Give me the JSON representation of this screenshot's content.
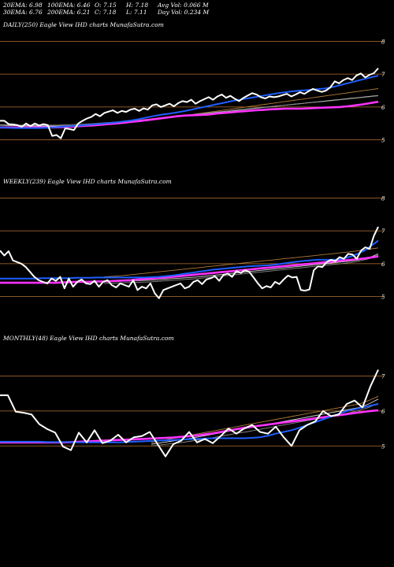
{
  "header": {
    "ema20": "20EMA: 6.98",
    "ema100": "100EMA: 6.46",
    "open": "O: 7.15",
    "high": "H: 7.18",
    "avg_vol": "Avg Vol: 0.066  M",
    "ema30": "30EMA: 6.76",
    "ema200": "200EMA: 6.21",
    "close": "C: 7.18",
    "low": "L: 7.11",
    "day_vol": "Day Vol: 0.234  M"
  },
  "colors": {
    "price": "#ffffff",
    "ema_fast": "#1f5fff",
    "ema_slow": "#ff33ff",
    "ma": "#b07a38",
    "grid": "#b87333"
  },
  "chart_data": [
    {
      "type": "line",
      "title": "DAILY(250) Eagle  View  IHD charts MunafaSutra.com",
      "ylim": [
        4.8,
        8.2
      ],
      "y_ticks": [
        5,
        6,
        7,
        8
      ],
      "series": [
        {
          "role": "price",
          "values": [
            5.58,
            5.58,
            5.48,
            5.47,
            5.45,
            5.4,
            5.5,
            5.42,
            5.5,
            5.44,
            5.48,
            5.45,
            5.12,
            5.15,
            5.05,
            5.35,
            5.33,
            5.3,
            5.5,
            5.58,
            5.65,
            5.7,
            5.79,
            5.72,
            5.82,
            5.86,
            5.9,
            5.82,
            5.88,
            5.85,
            5.92,
            5.95,
            5.88,
            5.96,
            5.92,
            6.05,
            6.08,
            6.0,
            6.05,
            6.1,
            6.02,
            6.12,
            6.18,
            6.15,
            6.22,
            6.1,
            6.18,
            6.24,
            6.3,
            6.22,
            6.32,
            6.38,
            6.28,
            6.34,
            6.25,
            6.18,
            6.28,
            6.35,
            6.42,
            6.38,
            6.3,
            6.26,
            6.32,
            6.3,
            6.32,
            6.36,
            6.4,
            6.32,
            6.38,
            6.45,
            6.4,
            6.48,
            6.55,
            6.5,
            6.46,
            6.5,
            6.6,
            6.78,
            6.72,
            6.82,
            6.88,
            6.82,
            6.96,
            7.02,
            6.9,
            6.98,
            7.03,
            7.18
          ]
        },
        {
          "role": "ema_fast",
          "values": [
            5.38,
            5.37,
            5.36,
            5.36,
            5.36,
            5.36,
            5.37,
            5.38,
            5.4,
            5.42,
            5.43,
            5.45,
            5.47,
            5.49,
            5.51,
            5.53,
            5.56,
            5.59,
            5.63,
            5.68,
            5.73,
            5.77,
            5.8,
            5.84,
            5.88,
            5.93,
            5.98,
            6.03,
            6.08,
            6.13,
            6.18,
            6.22,
            6.26,
            6.3,
            6.34,
            6.38,
            6.42,
            6.45,
            6.48,
            6.5,
            6.52,
            6.54,
            6.56,
            6.6,
            6.66,
            6.72,
            6.78,
            6.84,
            6.9,
            6.95
          ]
        },
        {
          "role": "ema_slow",
          "values": [
            5.38,
            5.38,
            5.38,
            5.38,
            5.38,
            5.38,
            5.38,
            5.38,
            5.39,
            5.4,
            5.41,
            5.43,
            5.44,
            5.46,
            5.48,
            5.5,
            5.52,
            5.55,
            5.57,
            5.6,
            5.63,
            5.66,
            5.69,
            5.72,
            5.74,
            5.75,
            5.76,
            5.77,
            5.8,
            5.82,
            5.84,
            5.86,
            5.88,
            5.9,
            5.91,
            5.93,
            5.94,
            5.95,
            5.95,
            5.95,
            5.96,
            5.97,
            5.98,
            5.99,
            6.0,
            6.02,
            6.05,
            6.08,
            6.12,
            6.16
          ]
        },
        {
          "role": "ma",
          "values": [
            5.45,
            5.44,
            5.43,
            5.42,
            5.41,
            5.4,
            5.4,
            5.41,
            5.42,
            5.44,
            5.46,
            5.48,
            5.5,
            5.53,
            5.56,
            5.59,
            5.62,
            5.65,
            5.68,
            5.72,
            5.76,
            5.8,
            5.84,
            5.88,
            5.92,
            5.96,
            6.0,
            6.04,
            6.08,
            6.12,
            6.16,
            6.2,
            6.24,
            6.28,
            6.32,
            6.36,
            6.4,
            6.44,
            6.48,
            6.52,
            6.56
          ]
        },
        {
          "role": "ma",
          "values": [
            5.45,
            5.44,
            5.43,
            5.43,
            5.42,
            5.42,
            5.42,
            5.43,
            5.44,
            5.45,
            5.47,
            5.49,
            5.51,
            5.54,
            5.57,
            5.6,
            5.63,
            5.66,
            5.69,
            5.72,
            5.75,
            5.78,
            5.81,
            5.84,
            5.87,
            5.9,
            5.93,
            5.96,
            5.99,
            6.02,
            6.05,
            6.08,
            6.11,
            6.14,
            6.17,
            6.2,
            6.23,
            6.26,
            6.29,
            6.32,
            6.35
          ]
        },
        {
          "role": "ma",
          "values": [
            5.46,
            5.46,
            5.45,
            5.45,
            5.45,
            5.45,
            5.45,
            5.46,
            5.47,
            5.48,
            5.5,
            5.52,
            5.54,
            5.56,
            5.58,
            5.61,
            5.64,
            5.67,
            5.7,
            5.73,
            5.76,
            5.79,
            5.82,
            5.85,
            5.88,
            5.91,
            5.94,
            5.97,
            6.0,
            6.02,
            6.05,
            6.08,
            6.11,
            6.14,
            6.16,
            6.19,
            6.22,
            6.25,
            6.28,
            6.31,
            6.34
          ]
        }
      ]
    },
    {
      "type": "line",
      "title": "WEEKLY(239) Eagle  View  IHD charts MunafaSutra.com",
      "ylim": [
        4.8,
        8.2
      ],
      "y_ticks": [
        5,
        6,
        7,
        8
      ],
      "series": [
        {
          "role": "price",
          "values": [
            6.4,
            6.25,
            6.38,
            6.1,
            6.05,
            6.0,
            5.9,
            5.75,
            5.6,
            5.5,
            5.45,
            5.4,
            5.55,
            5.48,
            5.6,
            5.25,
            5.55,
            5.3,
            5.45,
            5.52,
            5.4,
            5.38,
            5.48,
            5.3,
            5.45,
            5.5,
            5.35,
            5.28,
            5.4,
            5.35,
            5.3,
            5.5,
            5.2,
            5.3,
            5.25,
            5.4,
            5.1,
            4.95,
            5.2,
            5.25,
            5.3,
            5.35,
            5.4,
            5.25,
            5.3,
            5.45,
            5.5,
            5.38,
            5.52,
            5.56,
            5.62,
            5.48,
            5.66,
            5.7,
            5.6,
            5.78,
            5.72,
            5.8,
            5.75,
            5.58,
            5.4,
            5.25,
            5.32,
            5.28,
            5.45,
            5.38,
            5.52,
            5.64,
            5.58,
            5.6,
            5.2,
            5.18,
            5.22,
            5.8,
            5.92,
            5.9,
            6.05,
            6.12,
            6.08,
            6.2,
            6.15,
            6.3,
            6.28,
            6.15,
            6.4,
            6.5,
            6.45,
            6.85,
            7.12
          ]
        },
        {
          "role": "ema_fast",
          "values": [
            5.55,
            5.55,
            5.55,
            5.55,
            5.55,
            5.55,
            5.56,
            5.56,
            5.56,
            5.56,
            5.56,
            5.57,
            5.57,
            5.57,
            5.58,
            5.58,
            5.58,
            5.58,
            5.58,
            5.58,
            5.58,
            5.58,
            5.59,
            5.6,
            5.62,
            5.64,
            5.67,
            5.7,
            5.73,
            5.76,
            5.79,
            5.82,
            5.84,
            5.86,
            5.88,
            5.9,
            5.92,
            5.93,
            5.94,
            5.95,
            5.97,
            6.0,
            6.03,
            6.06,
            6.08,
            6.1,
            6.12,
            6.12,
            6.12,
            6.13,
            6.16,
            6.22,
            6.3,
            6.4,
            6.55,
            6.7
          ]
        },
        {
          "role": "ema_slow",
          "values": [
            5.42,
            5.42,
            5.42,
            5.42,
            5.42,
            5.42,
            5.42,
            5.42,
            5.42,
            5.43,
            5.44,
            5.45,
            5.45,
            5.45,
            5.46,
            5.46,
            5.47,
            5.48,
            5.49,
            5.5,
            5.52,
            5.54,
            5.55,
            5.57,
            5.58,
            5.6,
            5.62,
            5.64,
            5.66,
            5.68,
            5.7,
            5.72,
            5.74,
            5.76,
            5.78,
            5.8,
            5.82,
            5.84,
            5.86,
            5.88,
            5.9,
            5.92,
            5.94,
            5.96,
            5.98,
            6.0,
            6.02,
            6.04,
            6.06,
            6.08,
            6.1,
            6.12,
            6.14,
            6.16,
            6.19,
            6.22
          ]
        },
        {
          "role": "ma",
          "values": [
            5.6,
            5.62,
            5.64,
            5.67,
            5.7,
            5.73,
            5.76,
            5.79,
            5.82,
            5.85,
            5.88,
            5.91,
            5.94,
            5.97,
            6.0,
            6.03,
            6.06,
            6.09,
            6.12,
            6.15,
            6.18,
            6.21,
            6.24,
            6.27,
            6.3,
            6.33,
            6.36,
            6.4,
            6.44,
            6.48
          ]
        },
        {
          "role": "ma",
          "values": [
            5.45,
            5.46,
            5.47,
            5.48,
            5.49,
            5.5,
            5.52,
            5.54,
            5.56,
            5.58,
            5.6,
            5.63,
            5.66,
            5.69,
            5.72,
            5.75,
            5.78,
            5.81,
            5.84,
            5.87,
            5.9,
            5.93,
            5.96,
            5.99,
            6.02,
            6.05,
            6.08,
            6.12,
            6.18,
            6.3
          ]
        },
        {
          "role": "ma",
          "values": [
            5.4,
            5.41,
            5.42,
            5.43,
            5.44,
            5.45,
            5.47,
            5.49,
            5.51,
            5.53,
            5.55,
            5.58,
            5.61,
            5.64,
            5.67,
            5.7,
            5.73,
            5.76,
            5.79,
            5.82,
            5.85,
            5.88,
            5.91,
            5.94,
            5.97,
            6.0,
            6.03,
            6.08,
            6.15,
            6.26
          ]
        }
      ]
    },
    {
      "type": "line",
      "title": "MONTHLY(48) Eagle  View  IHD charts MunafaSutra.com",
      "ylim": [
        4.6,
        7.8
      ],
      "y_ticks": [
        5,
        6,
        7
      ],
      "series": [
        {
          "role": "price",
          "values": [
            6.45,
            6.45,
            5.98,
            5.95,
            5.9,
            5.62,
            5.48,
            5.38,
            4.98,
            4.88,
            5.38,
            5.1,
            5.45,
            5.08,
            5.15,
            5.32,
            5.1,
            5.25,
            5.28,
            5.4,
            5.05,
            4.7,
            5.05,
            5.15,
            5.4,
            5.1,
            5.2,
            5.08,
            5.28,
            5.5,
            5.35,
            5.5,
            5.6,
            5.4,
            5.35,
            5.55,
            5.25,
            5.0,
            5.45,
            5.6,
            5.7,
            6.0,
            5.85,
            5.9,
            6.2,
            6.3,
            6.1,
            6.7,
            7.18
          ]
        },
        {
          "role": "ema_fast",
          "values": [
            5.12,
            5.12,
            5.12,
            5.12,
            5.12,
            5.12,
            5.11,
            5.11,
            5.11,
            5.11,
            5.1,
            5.1,
            5.1,
            5.1,
            5.1,
            5.1,
            5.11,
            5.12,
            5.13,
            5.14,
            5.15,
            5.16,
            5.17,
            5.18,
            5.19,
            5.2,
            5.21,
            5.22,
            5.22,
            5.22,
            5.22,
            5.22,
            5.23,
            5.25,
            5.29,
            5.35,
            5.4,
            5.45,
            5.52,
            5.6,
            5.68,
            5.76,
            5.84,
            5.92,
            6.0,
            6.05,
            6.1,
            6.15,
            6.2
          ]
        },
        {
          "role": "ema_slow",
          "values": [
            5.1,
            5.1,
            5.1,
            5.1,
            5.1,
            5.1,
            5.1,
            5.1,
            5.1,
            5.11,
            5.12,
            5.13,
            5.14,
            5.15,
            5.16,
            5.17,
            5.18,
            5.19,
            5.2,
            5.21,
            5.22,
            5.23,
            5.24,
            5.26,
            5.28,
            5.3,
            5.33,
            5.36,
            5.4,
            5.44,
            5.48,
            5.52,
            5.55,
            5.58,
            5.61,
            5.64,
            5.67,
            5.7,
            5.73,
            5.76,
            5.79,
            5.82,
            5.85,
            5.88,
            5.91,
            5.94,
            5.97,
            6.0,
            6.02
          ]
        },
        {
          "role": "ma",
          "values": [
            5.1,
            5.15,
            5.2,
            5.25,
            5.3,
            5.35,
            5.4,
            5.45,
            5.5,
            5.55,
            5.6,
            5.65,
            5.7,
            5.75,
            5.8,
            5.85,
            5.9,
            5.95,
            6.0,
            6.05,
            6.1,
            6.15,
            6.2,
            6.3,
            6.42
          ]
        },
        {
          "role": "ma",
          "values": [
            5.05,
            5.09,
            5.13,
            5.17,
            5.21,
            5.26,
            5.31,
            5.36,
            5.41,
            5.46,
            5.5,
            5.55,
            5.6,
            5.65,
            5.7,
            5.75,
            5.8,
            5.85,
            5.9,
            5.95,
            6.0,
            6.05,
            6.1,
            6.2,
            6.34
          ]
        },
        {
          "role": "ma",
          "values": [
            5.0,
            5.03,
            5.06,
            5.09,
            5.13,
            5.17,
            5.21,
            5.26,
            5.31,
            5.36,
            5.4,
            5.45,
            5.5,
            5.55,
            5.6,
            5.65,
            5.7,
            5.75,
            5.8,
            5.85,
            5.9,
            5.95,
            6.02,
            6.1,
            6.22
          ]
        }
      ]
    }
  ]
}
